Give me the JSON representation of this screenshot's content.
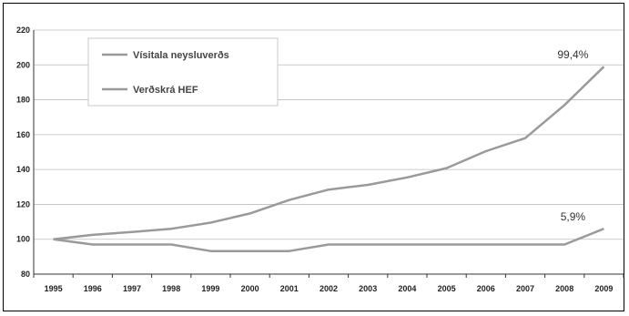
{
  "chart_data": {
    "type": "line",
    "title": "",
    "xlabel": "",
    "ylabel": "",
    "ylim": [
      80,
      220
    ],
    "yticks": [
      80,
      100,
      120,
      140,
      160,
      180,
      200,
      220
    ],
    "categories": [
      "1995",
      "1996",
      "1997",
      "1998",
      "1999",
      "2000",
      "2001",
      "2002",
      "2003",
      "2004",
      "2005",
      "2006",
      "2007",
      "2008",
      "2009"
    ],
    "grid": true,
    "legend_position": "top-left",
    "series": [
      {
        "name": "Vísitala neysluverðs",
        "color": "#9a9a9a",
        "values": [
          100,
          102.5,
          104.2,
          106,
          109.5,
          114.8,
          122.5,
          128.5,
          131.2,
          135.5,
          140.8,
          150.5,
          158,
          177,
          199
        ]
      },
      {
        "name": "Verðskrá HEF",
        "color": "#9a9a9a",
        "values": [
          100,
          97,
          97,
          97,
          93.2,
          93.2,
          93.2,
          97,
          97,
          97,
          97,
          97,
          97,
          97,
          106
        ]
      }
    ],
    "annotations": [
      {
        "text": "99,4%",
        "series": 0,
        "category": "2009"
      },
      {
        "text": "5,9%",
        "series": 1,
        "category": "2009"
      }
    ]
  }
}
